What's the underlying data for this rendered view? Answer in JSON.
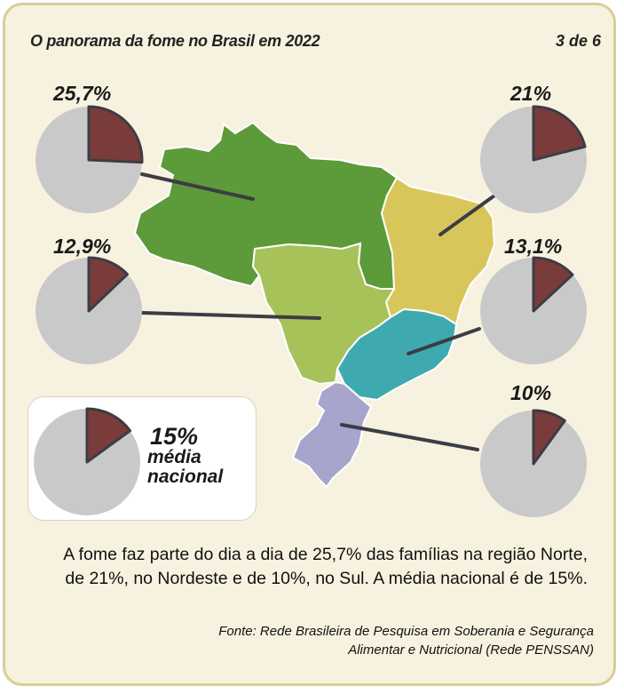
{
  "header": {
    "title": "O panorama da fome no Brasil em 2022",
    "page": "3 de 6"
  },
  "chart_data": {
    "type": "pie",
    "title": "O panorama da fome no Brasil em 2022",
    "unit": "%",
    "regions": [
      {
        "name": "Norte",
        "value": 25.7,
        "label": "25,7%",
        "color": "#5c9a3a"
      },
      {
        "name": "Nordeste",
        "value": 21,
        "label": "21%",
        "color": "#d9c65a"
      },
      {
        "name": "Centro-Oeste",
        "value": 12.9,
        "label": "12,9%",
        "color": "#a8c25a"
      },
      {
        "name": "Sudeste",
        "value": 13.1,
        "label": "13,1%",
        "color": "#3eaab0"
      },
      {
        "name": "Sul",
        "value": 10,
        "label": "10%",
        "color": "#a7a5cc"
      }
    ],
    "national": {
      "value": 15,
      "label": "15%",
      "text_line1": "média",
      "text_line2": "nacional"
    },
    "slice_color": "#7a3b3b",
    "rest_color": "#c9c9c9"
  },
  "caption": {
    "line1": "A fome faz parte do dia a dia de 25,7% das famílias na região Norte,",
    "line2": "de 21%, no Nordeste e de 10%, no Sul. A média nacional é de 15%."
  },
  "source": {
    "line1": "Fonte: Rede Brasileira de Pesquisa em Soberania e Segurança",
    "line2": "Alimentar e Nutricional (Rede PENSSAN)"
  }
}
